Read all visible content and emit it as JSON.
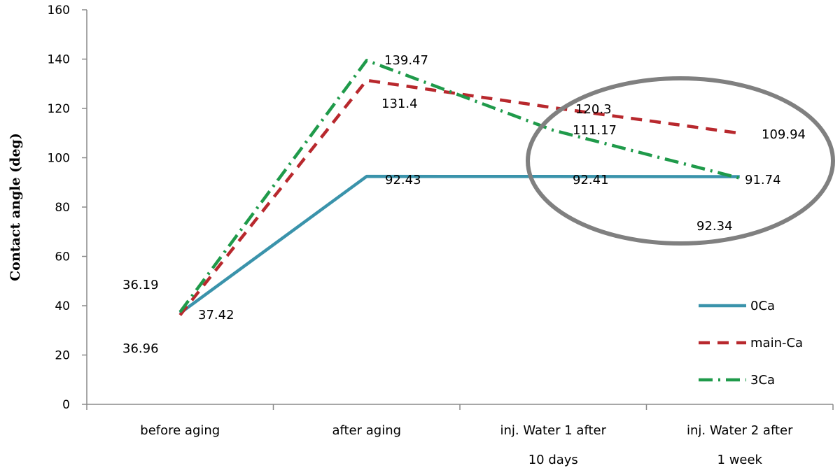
{
  "chart_data": {
    "type": "line",
    "ylabel": "Contact angle (deg)",
    "xlabel": "",
    "ylim": [
      0,
      160
    ],
    "yticks": [
      0,
      20,
      40,
      60,
      80,
      100,
      120,
      140,
      160
    ],
    "categories": [
      [
        "before aging"
      ],
      [
        "after aging"
      ],
      [
        "inj. Water 1 after",
        "10 days"
      ],
      [
        "inj. Water 2 after",
        "1 week"
      ]
    ],
    "series": [
      {
        "name": "0Ca",
        "values": [
          36.96,
          92.43,
          92.41,
          92.34
        ],
        "color": "#3a93ab",
        "style": "solid"
      },
      {
        "name": "main-Ca",
        "values": [
          36.19,
          131.4,
          120.3,
          109.94
        ],
        "color": "#b8282d",
        "style": "dashed"
      },
      {
        "name": "3Ca",
        "values": [
          37.42,
          139.47,
          111.17,
          91.74
        ],
        "color": "#1f9a4a",
        "style": "dashdot"
      }
    ],
    "data_labels": [
      "36.96",
      "36.19",
      "37.42",
      "92.43",
      "131.4",
      "139.47",
      "92.41",
      "120.3",
      "111.17",
      "92.34",
      "109.94",
      "91.74"
    ],
    "legend_position": "bottom-right",
    "grid": false,
    "annotation": "gray ellipse highlighting the last two categories"
  }
}
